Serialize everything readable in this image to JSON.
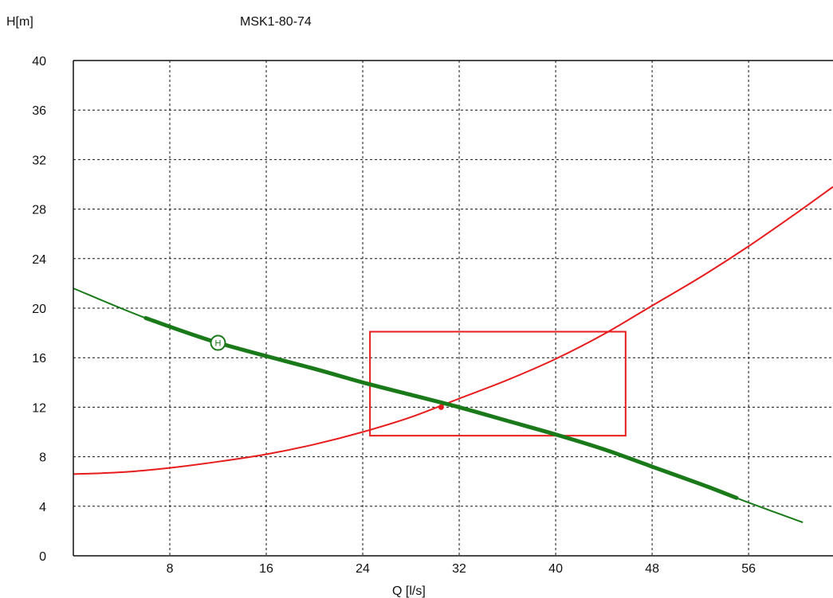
{
  "chart_data": {
    "type": "line",
    "title": "MSK1-80-74",
    "xlabel": "Q [l/s]",
    "ylabel": "H[m]",
    "xlim": [
      0,
      63
    ],
    "ylim": [
      0,
      40
    ],
    "x_ticks": [
      8,
      16,
      24,
      32,
      40,
      48,
      56
    ],
    "y_ticks": [
      0,
      4,
      8,
      12,
      16,
      20,
      24,
      28,
      32,
      36,
      40
    ],
    "grid": true,
    "series": [
      {
        "color": "#1a7a1a",
        "points": [
          [
            0,
            21.6
          ],
          [
            6,
            19.2
          ],
          [
            12,
            17.2
          ],
          [
            20,
            15.1
          ],
          [
            24,
            14.0
          ],
          [
            28,
            13.0
          ],
          [
            32,
            12.0
          ],
          [
            36,
            10.9
          ],
          [
            40,
            9.8
          ],
          [
            44,
            8.6
          ],
          [
            48,
            7.2
          ],
          [
            52,
            5.8
          ],
          [
            56,
            4.3
          ],
          [
            60.5,
            2.7
          ]
        ],
        "thick_range": [
          6,
          55
        ],
        "marker": {
          "x": 12,
          "y": 17.2,
          "label": "H"
        }
      },
      {
        "color": "#e81c1c",
        "points": [
          [
            0,
            6.6
          ],
          [
            4,
            6.75
          ],
          [
            8,
            7.1
          ],
          [
            12,
            7.6
          ],
          [
            16,
            8.2
          ],
          [
            20,
            9.0
          ],
          [
            24,
            10.0
          ],
          [
            28,
            11.2
          ],
          [
            32,
            12.7
          ],
          [
            36,
            14.2
          ],
          [
            40,
            15.9
          ],
          [
            44,
            17.9
          ],
          [
            48,
            20.2
          ],
          [
            52,
            22.5
          ],
          [
            56,
            25.0
          ],
          [
            60,
            27.7
          ],
          [
            63,
            29.8
          ]
        ],
        "operating_point": {
          "x": 30.5,
          "y": 12.0
        }
      }
    ],
    "tolerance_box": {
      "x0": 24.6,
      "x1": 45.8,
      "y0": 9.7,
      "y1": 18.1,
      "color": "#e81c1c"
    }
  }
}
